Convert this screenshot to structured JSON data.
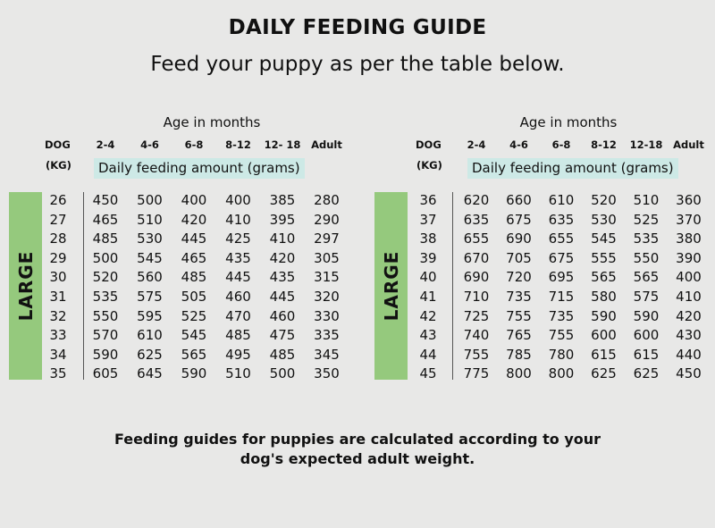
{
  "title": "DAILY FEEDING GUIDE",
  "subtitle": "Feed your puppy as per the table below.",
  "tables": [
    {
      "age_caption": "Age in months",
      "dog_label": "DOG",
      "kg_label": "(KG)",
      "columns": [
        "2-4",
        "4-6",
        "6-8",
        "8-12",
        "12- 18",
        "Adult"
      ],
      "amount_label": "Daily feeding amount (grams)",
      "size_label": "LARGE",
      "rows": [
        {
          "dog": "26",
          "values": [
            "450",
            "500",
            "400",
            "400",
            "385",
            "280"
          ]
        },
        {
          "dog": "27",
          "values": [
            "465",
            "510",
            "420",
            "410",
            "395",
            "290"
          ]
        },
        {
          "dog": "28",
          "values": [
            "485",
            "530",
            "445",
            "425",
            "410",
            "297"
          ]
        },
        {
          "dog": "29",
          "values": [
            "500",
            "545",
            "465",
            "435",
            "420",
            "305"
          ]
        },
        {
          "dog": "30",
          "values": [
            "520",
            "560",
            "485",
            "445",
            "435",
            "315"
          ]
        },
        {
          "dog": "31",
          "values": [
            "535",
            "575",
            "505",
            "460",
            "445",
            "320"
          ]
        },
        {
          "dog": "32",
          "values": [
            "550",
            "595",
            "525",
            "470",
            "460",
            "330"
          ]
        },
        {
          "dog": "33",
          "values": [
            "570",
            "610",
            "545",
            "485",
            "475",
            "335"
          ]
        },
        {
          "dog": "34",
          "values": [
            "590",
            "625",
            "565",
            "495",
            "485",
            "345"
          ]
        },
        {
          "dog": "35",
          "values": [
            "605",
            "645",
            "590",
            "510",
            "500",
            "350"
          ]
        }
      ]
    },
    {
      "age_caption": "Age in months",
      "dog_label": "DOG",
      "kg_label": "(KG)",
      "columns": [
        "2-4",
        "4-6",
        "6-8",
        "8-12",
        "12-18",
        "Adult"
      ],
      "amount_label": "Daily feeding amount (grams)",
      "size_label": "LARGE",
      "rows": [
        {
          "dog": "36",
          "values": [
            "620",
            "660",
            "610",
            "520",
            "510",
            "360"
          ]
        },
        {
          "dog": "37",
          "values": [
            "635",
            "675",
            "635",
            "530",
            "525",
            "370"
          ]
        },
        {
          "dog": "38",
          "values": [
            "655",
            "690",
            "655",
            "545",
            "535",
            "380"
          ]
        },
        {
          "dog": "39",
          "values": [
            "670",
            "705",
            "675",
            "555",
            "550",
            "390"
          ]
        },
        {
          "dog": "40",
          "values": [
            "690",
            "720",
            "695",
            "565",
            "565",
            "400"
          ]
        },
        {
          "dog": "41",
          "values": [
            "710",
            "735",
            "715",
            "580",
            "575",
            "410"
          ]
        },
        {
          "dog": "42",
          "values": [
            "725",
            "755",
            "735",
            "590",
            "590",
            "420"
          ]
        },
        {
          "dog": "43",
          "values": [
            "740",
            "765",
            "755",
            "600",
            "600",
            "430"
          ]
        },
        {
          "dog": "44",
          "values": [
            "755",
            "785",
            "780",
            "615",
            "615",
            "440"
          ]
        },
        {
          "dog": "45",
          "values": [
            "775",
            "800",
            "800",
            "625",
            "625",
            "450"
          ]
        }
      ]
    }
  ],
  "footer_line1": "Feeding guides for puppies are calculated according to your",
  "footer_line2": "dog's expected adult weight."
}
